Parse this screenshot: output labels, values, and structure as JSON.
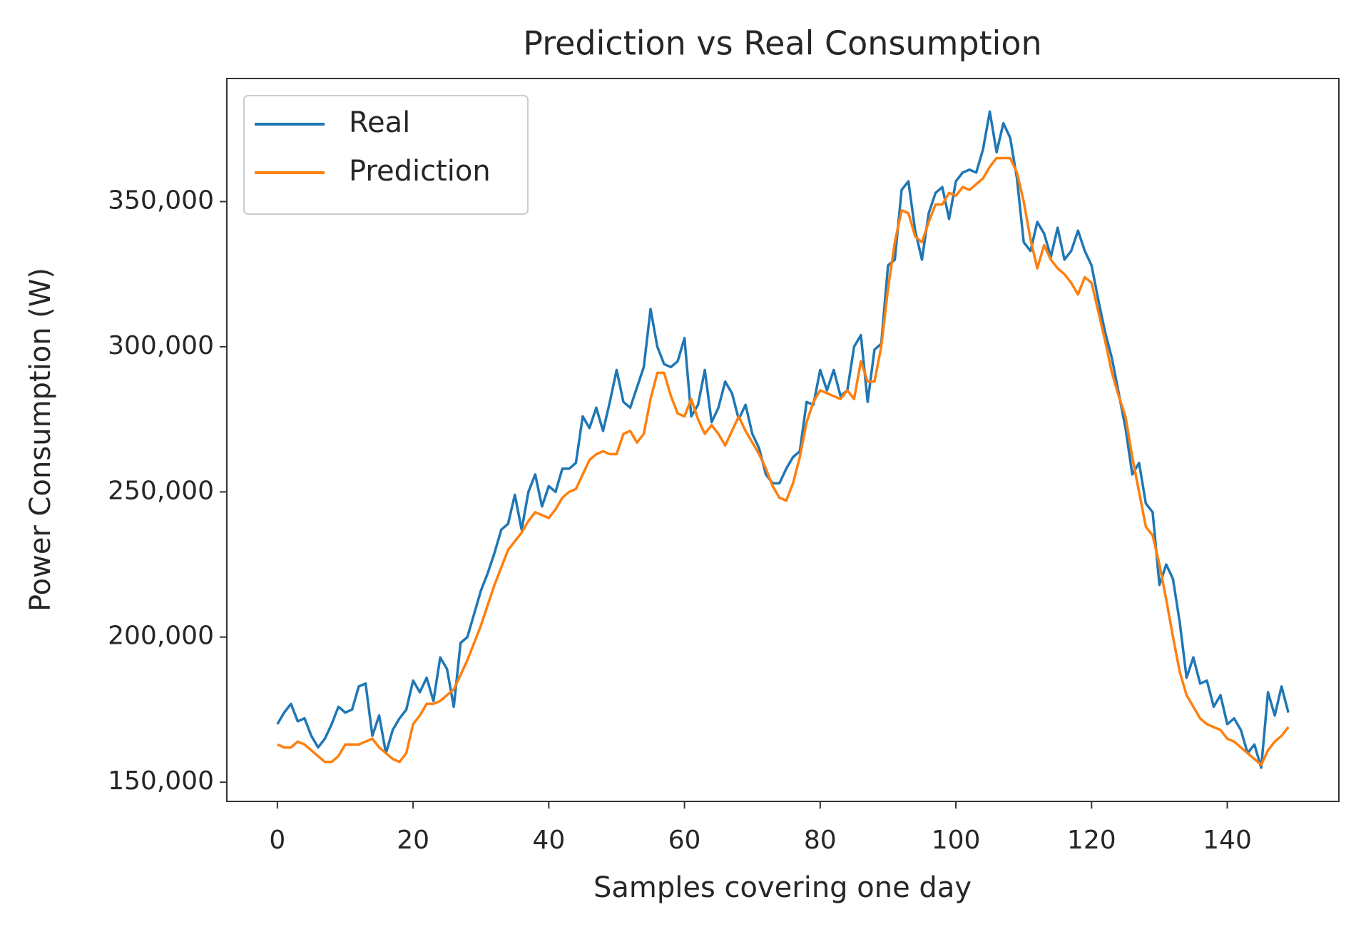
{
  "chart_data": {
    "type": "line",
    "title": "Prediction vs Real Consumption",
    "x_label": "Samples covering one day",
    "y_label": "Power Consumption (W)",
    "x": [
      0,
      1,
      2,
      3,
      4,
      5,
      6,
      7,
      8,
      9,
      10,
      11,
      12,
      13,
      14,
      15,
      16,
      17,
      18,
      19,
      20,
      21,
      22,
      23,
      24,
      25,
      26,
      27,
      28,
      29,
      30,
      31,
      32,
      33,
      34,
      35,
      36,
      37,
      38,
      39,
      40,
      41,
      42,
      43,
      44,
      45,
      46,
      47,
      48,
      49,
      50,
      51,
      52,
      53,
      54,
      55,
      56,
      57,
      58,
      59,
      60,
      61,
      62,
      63,
      64,
      65,
      66,
      67,
      68,
      69,
      70,
      71,
      72,
      73,
      74,
      75,
      76,
      77,
      78,
      79,
      80,
      81,
      82,
      83,
      84,
      85,
      86,
      87,
      88,
      89,
      90,
      91,
      92,
      93,
      94,
      95,
      96,
      97,
      98,
      99,
      100,
      101,
      102,
      103,
      104,
      105,
      106,
      107,
      108,
      109,
      110,
      111,
      112,
      113,
      114,
      115,
      116,
      117,
      118,
      119,
      120,
      121,
      122,
      123,
      124,
      125,
      126,
      127,
      128,
      129,
      130,
      131,
      132,
      133,
      134,
      135,
      136,
      137,
      138,
      139,
      140,
      141,
      142,
      143,
      144,
      145,
      146,
      147,
      148,
      149
    ],
    "series": [
      {
        "name": "Real",
        "color": "#1f77b4",
        "values": [
          170000,
          174000,
          177000,
          171000,
          172000,
          166000,
          162000,
          165000,
          170000,
          176000,
          174000,
          175000,
          183000,
          184000,
          166000,
          173000,
          160000,
          168000,
          172000,
          175000,
          185000,
          181000,
          186000,
          178000,
          193000,
          189000,
          176000,
          198000,
          200000,
          208000,
          216000,
          222000,
          229000,
          237000,
          239000,
          249000,
          237000,
          250000,
          256000,
          245000,
          252000,
          250000,
          258000,
          258000,
          260000,
          276000,
          272000,
          279000,
          271000,
          281000,
          292000,
          281000,
          279000,
          286000,
          293000,
          313000,
          300000,
          294000,
          293000,
          295000,
          303000,
          276000,
          280000,
          292000,
          274000,
          279000,
          288000,
          284000,
          275000,
          280000,
          270000,
          265000,
          256000,
          253000,
          253000,
          258000,
          262000,
          264000,
          281000,
          280000,
          292000,
          285000,
          292000,
          283000,
          285000,
          300000,
          304000,
          281000,
          299000,
          301000,
          328000,
          330000,
          354000,
          357000,
          340000,
          330000,
          346000,
          353000,
          355000,
          344000,
          357000,
          360000,
          361000,
          360000,
          368000,
          381000,
          367000,
          377000,
          372000,
          358000,
          336000,
          333000,
          343000,
          339000,
          331000,
          341000,
          330000,
          333000,
          340000,
          333000,
          328000,
          316000,
          305000,
          296000,
          284000,
          272000,
          256000,
          260000,
          246000,
          243000,
          218000,
          225000,
          220000,
          205000,
          186000,
          193000,
          184000,
          185000,
          176000,
          180000,
          170000,
          172000,
          168000,
          160000,
          163000,
          155000,
          181000,
          173000,
          183000,
          174000
        ]
      },
      {
        "name": "Prediction",
        "color": "#ff7f0e",
        "values": [
          163000,
          162000,
          162000,
          164000,
          163000,
          161000,
          159000,
          157000,
          157000,
          159000,
          163000,
          163000,
          163000,
          164000,
          165000,
          162000,
          160000,
          158000,
          157000,
          160000,
          170000,
          173000,
          177000,
          177000,
          178000,
          180000,
          182000,
          187000,
          192000,
          198000,
          204000,
          211000,
          218000,
          224000,
          230000,
          233000,
          236000,
          240000,
          243000,
          242000,
          241000,
          244000,
          248000,
          250000,
          251000,
          256000,
          261000,
          263000,
          264000,
          263000,
          263000,
          270000,
          271000,
          267000,
          270000,
          282000,
          291000,
          291000,
          283000,
          277000,
          276000,
          282000,
          275000,
          270000,
          273000,
          270000,
          266000,
          271000,
          276000,
          271000,
          267000,
          263000,
          258000,
          252000,
          248000,
          247000,
          253000,
          262000,
          274000,
          281000,
          285000,
          284000,
          283000,
          282000,
          285000,
          282000,
          295000,
          288000,
          288000,
          300000,
          320000,
          336000,
          347000,
          346000,
          338000,
          336000,
          343000,
          349000,
          349000,
          353000,
          352000,
          355000,
          354000,
          356000,
          358000,
          362000,
          365000,
          365000,
          365000,
          360000,
          350000,
          337000,
          327000,
          335000,
          330000,
          327000,
          325000,
          322000,
          318000,
          324000,
          322000,
          312000,
          302000,
          291000,
          283000,
          276000,
          262000,
          250000,
          238000,
          235000,
          225000,
          213000,
          200000,
          188000,
          180000,
          176000,
          172000,
          170000,
          169000,
          168000,
          165000,
          164000,
          162000,
          160000,
          158000,
          156000,
          161000,
          164000,
          166000,
          169000
        ]
      }
    ],
    "xlim": [
      -7.45,
      156.45
    ],
    "ylim": [
      143400,
      392400
    ],
    "xticks": [
      0,
      20,
      40,
      60,
      80,
      100,
      120,
      140
    ],
    "yticks": [
      {
        "value": 150000,
        "label": "150,000"
      },
      {
        "value": 200000,
        "label": "200,000"
      },
      {
        "value": 250000,
        "label": "250,000"
      },
      {
        "value": 300000,
        "label": "300,000"
      },
      {
        "value": 350000,
        "label": "350,000"
      }
    ],
    "legend": "upper left",
    "grid": false
  }
}
